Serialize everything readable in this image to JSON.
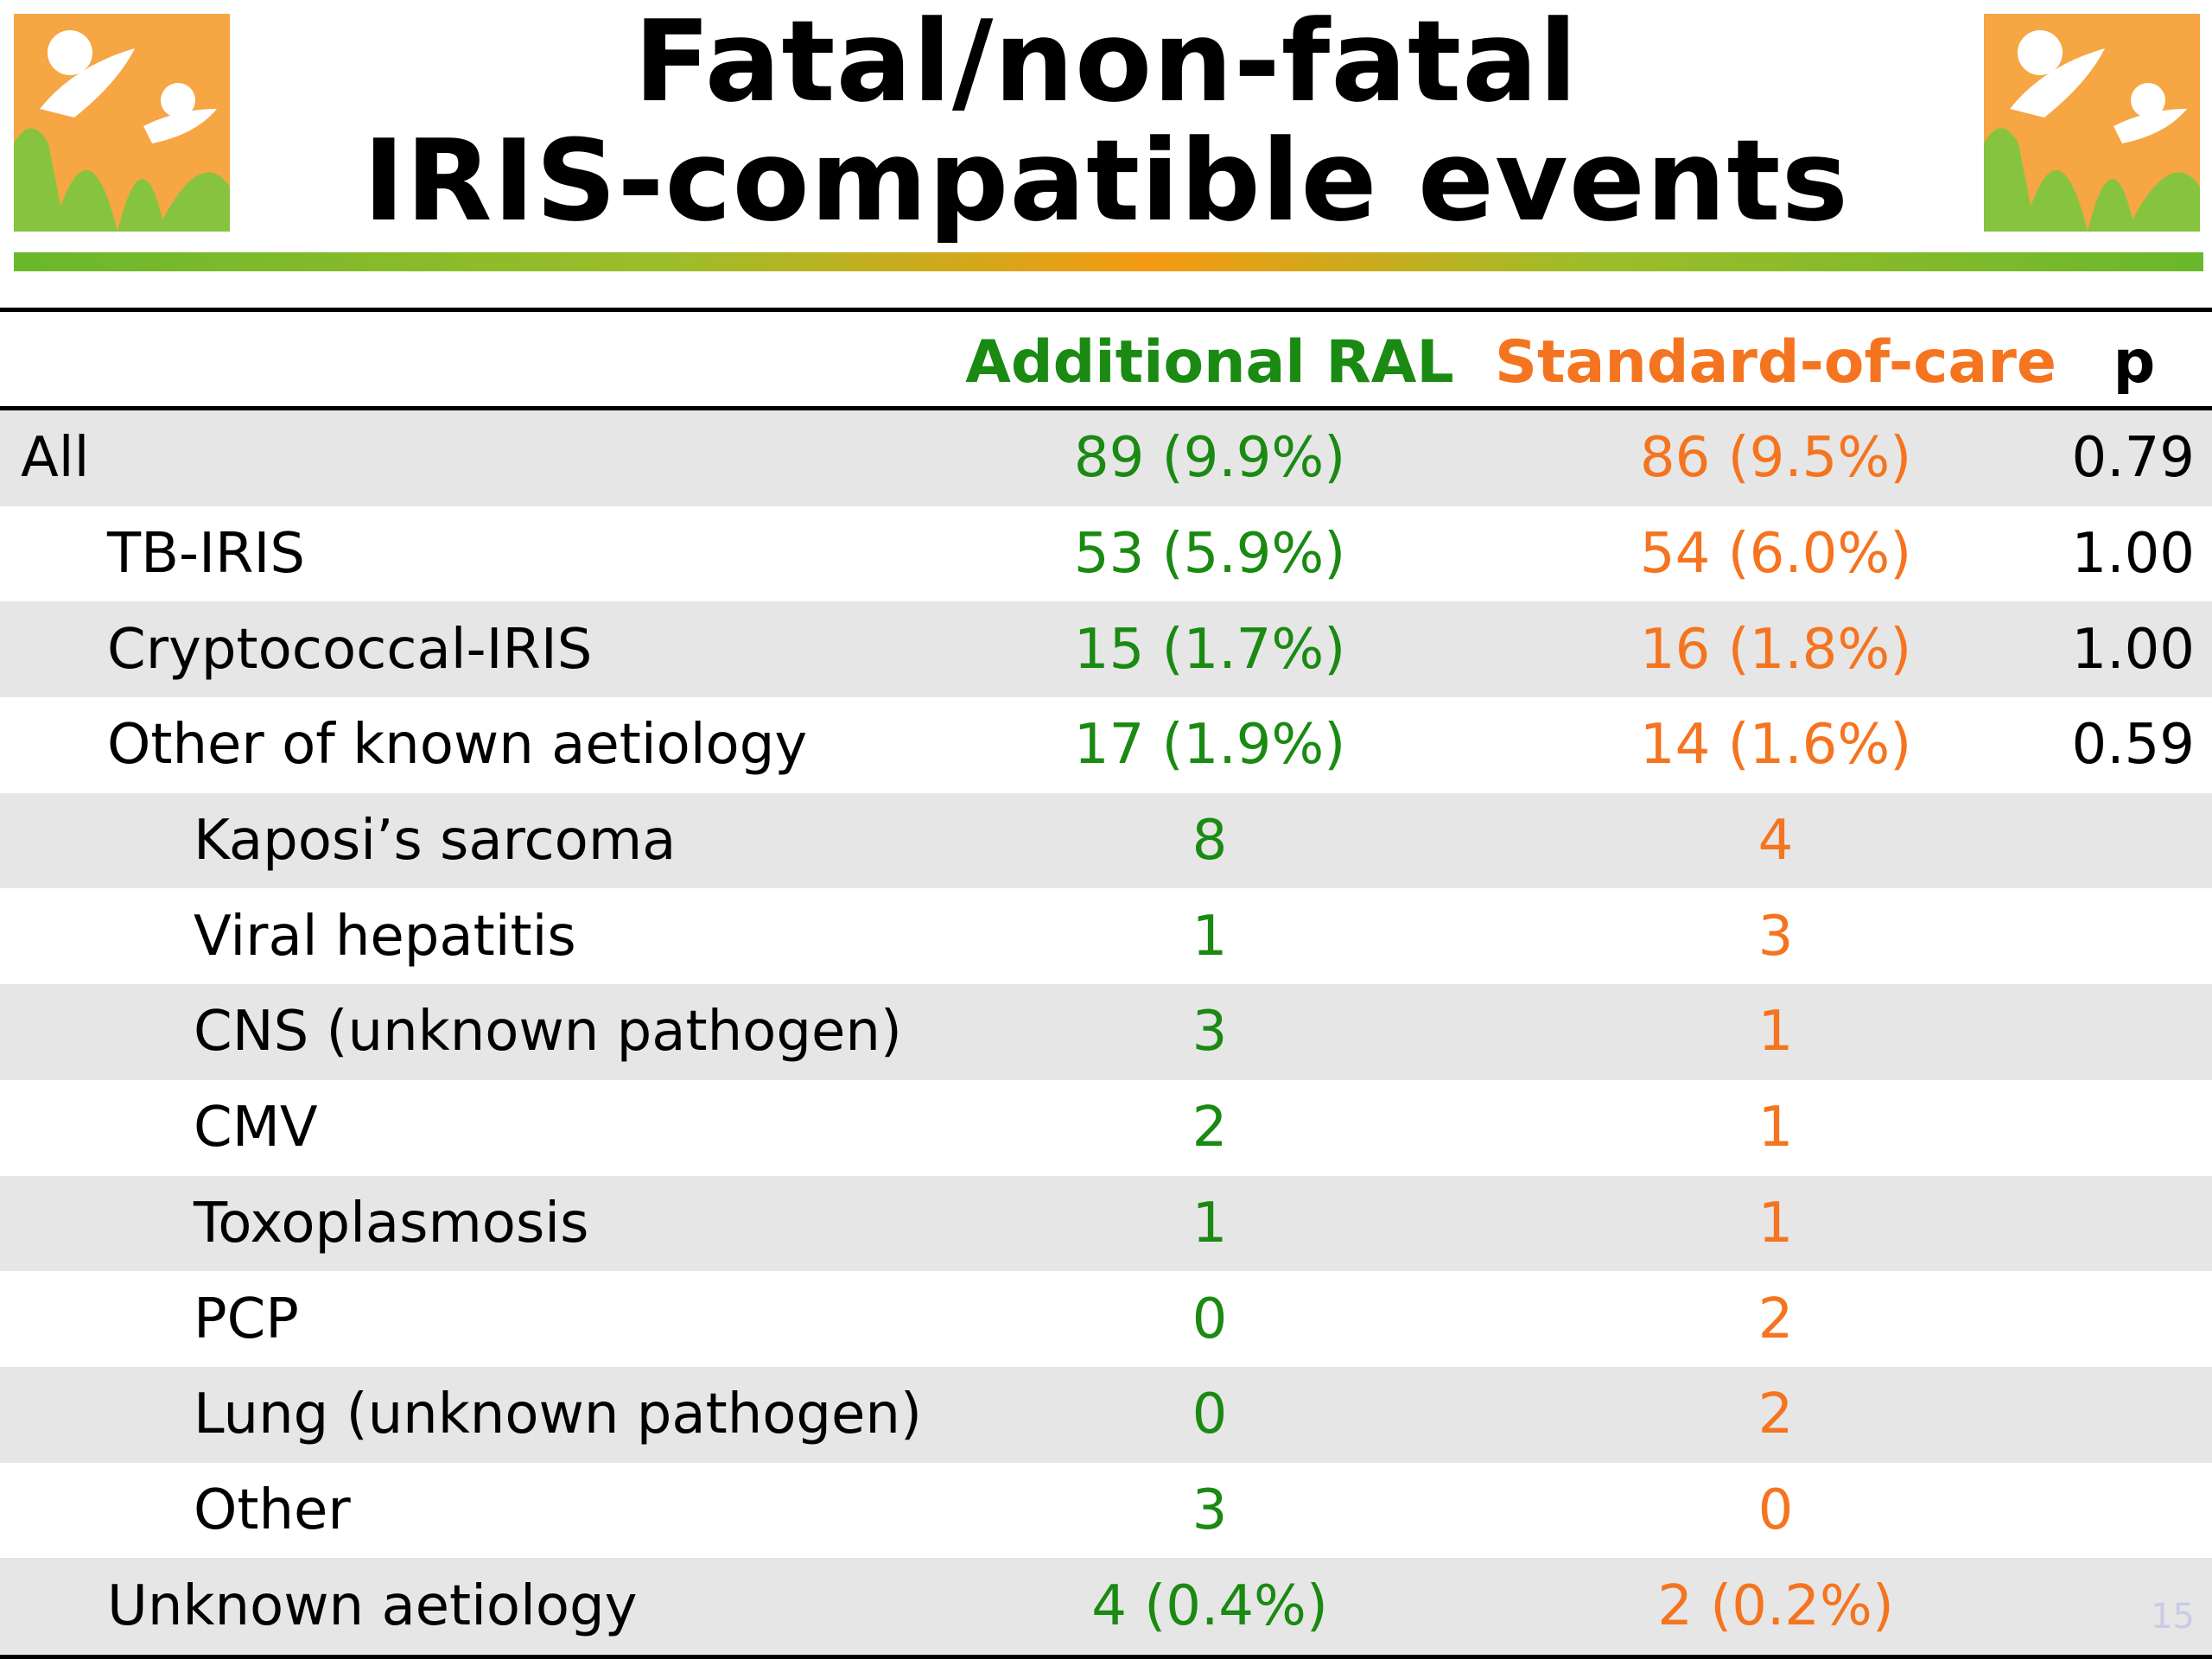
{
  "slide": {
    "title_line1": "Fatal/non-fatal",
    "title_line2": "IRIS-compatible events",
    "page_number": "15"
  },
  "colors": {
    "ral": "#1a8a12",
    "soc": "#f5741f",
    "logo_orange": "#f6a642",
    "logo_green": "#86c440"
  },
  "table": {
    "headers": {
      "ral": "Additional RAL",
      "soc": "Standard-of-care",
      "p": "p"
    },
    "rows": [
      {
        "label": "All",
        "ral": "89 (9.9%)",
        "soc": "86 (9.5%)",
        "p": "0.79"
      },
      {
        "label": "TB-IRIS",
        "ral": "53 (5.9%)",
        "soc": "54 (6.0%)",
        "p": "1.00"
      },
      {
        "label": "Cryptococcal-IRIS",
        "ral": "15 (1.7%)",
        "soc": "16 (1.8%)",
        "p": "1.00"
      },
      {
        "label": "Other of known aetiology",
        "ral": "17 (1.9%)",
        "soc": "14 (1.6%)",
        "p": "0.59"
      },
      {
        "label": "Kaposi’s sarcoma",
        "ral": "8",
        "soc": "4",
        "p": ""
      },
      {
        "label": "Viral hepatitis",
        "ral": "1",
        "soc": "3",
        "p": ""
      },
      {
        "label": "CNS (unknown pathogen)",
        "ral": "3",
        "soc": "1",
        "p": ""
      },
      {
        "label": "CMV",
        "ral": "2",
        "soc": "1",
        "p": ""
      },
      {
        "label": "Toxoplasmosis",
        "ral": "1",
        "soc": "1",
        "p": ""
      },
      {
        "label": "PCP",
        "ral": "0",
        "soc": "2",
        "p": ""
      },
      {
        "label": "Lung (unknown pathogen)",
        "ral": "0",
        "soc": "2",
        "p": ""
      },
      {
        "label": "Other",
        "ral": "3",
        "soc": "0",
        "p": ""
      },
      {
        "label": "Unknown aetiology",
        "ral": "4 (0.4%)",
        "soc": "2 (0.2%)",
        "p": ""
      }
    ]
  }
}
